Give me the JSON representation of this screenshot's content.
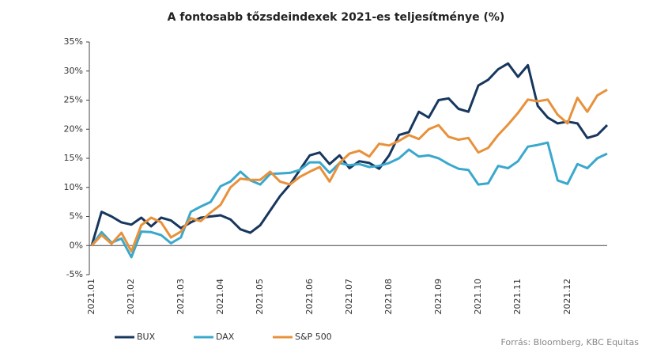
{
  "chart_data": {
    "type": "line",
    "title": "A fontosabb tőzsdeindexek 2021-es teljesítménye (%)",
    "source": "Forrás: Bloomberg, KBC Equitas",
    "categories": [
      "2021.01",
      null,
      null,
      null,
      "2021.02",
      null,
      null,
      null,
      null,
      "2021.03",
      null,
      null,
      null,
      "2021.04",
      null,
      null,
      null,
      "2021.05",
      null,
      null,
      null,
      null,
      "2021.06",
      null,
      null,
      null,
      "2021.07",
      null,
      null,
      null,
      "2021.08",
      null,
      null,
      null,
      null,
      "2021.09",
      null,
      null,
      null,
      "2021.10",
      null,
      null,
      null,
      "2021.11",
      null,
      null,
      null,
      null,
      "2021.12",
      null,
      null,
      null,
      null
    ],
    "ylim": [
      -5,
      35
    ],
    "yticks": [
      {
        "value": -5,
        "label": "-5%"
      },
      {
        "value": 0,
        "label": "0%"
      },
      {
        "value": 5,
        "label": "5%"
      },
      {
        "value": 10,
        "label": "10%"
      },
      {
        "value": 15,
        "label": "15%"
      },
      {
        "value": 20,
        "label": "20%"
      },
      {
        "value": 25,
        "label": "25%"
      },
      {
        "value": 30,
        "label": "30%"
      },
      {
        "value": 35,
        "label": "35%"
      }
    ],
    "legend": "bottom",
    "series": [
      {
        "name": "BUX",
        "color": "#17375e",
        "values": [
          0,
          5.8,
          5,
          4,
          3.6,
          4.8,
          3.3,
          4.8,
          4.3,
          3,
          4,
          4.8,
          5,
          5.2,
          4.5,
          2.8,
          2.2,
          3.5,
          6,
          8.5,
          10.5,
          13,
          15.5,
          16,
          14,
          15.5,
          13.3,
          14.5,
          14.2,
          13.2,
          15.5,
          19,
          19.5,
          23,
          22,
          25,
          25.3,
          23.5,
          23,
          27.5,
          28.5,
          30.3,
          31.3,
          29,
          31,
          24,
          22,
          21,
          21.3,
          21,
          18.5,
          19,
          20.7
        ]
      },
      {
        "name": "DAX",
        "color": "#3aa8cc",
        "values": [
          0,
          2.3,
          0.5,
          1.2,
          -2,
          2.4,
          2.3,
          1.8,
          0.4,
          1.4,
          5.8,
          6.7,
          7.5,
          10.2,
          11,
          12.7,
          11.2,
          10.5,
          12.3,
          12.4,
          12.5,
          13,
          14.3,
          14.3,
          12.5,
          14.2,
          13.8,
          14,
          13.5,
          13.7,
          14.2,
          15,
          16.5,
          15.3,
          15.5,
          15,
          14,
          13.2,
          13,
          10.5,
          10.7,
          13.7,
          13.3,
          14.5,
          17,
          17.3,
          17.7,
          11.2,
          10.6,
          14,
          13.3,
          15,
          15.8
        ]
      },
      {
        "name": "S&P 500",
        "color": "#e8913a",
        "values": [
          0,
          1.8,
          0.3,
          2.2,
          -1,
          3.5,
          4.8,
          4,
          1.4,
          2.4,
          4.7,
          4.2,
          5.7,
          7,
          10,
          11.5,
          11.3,
          11.3,
          12.7,
          11,
          10.5,
          11.8,
          12.7,
          13.5,
          11,
          14.2,
          15.8,
          16.3,
          15.3,
          17.5,
          17.2,
          18,
          19,
          18.3,
          20,
          20.7,
          18.7,
          18.2,
          18.5,
          16,
          16.8,
          19,
          20.8,
          22.8,
          25.1,
          24.8,
          25.1,
          22.5,
          21,
          25.4,
          23,
          25.8,
          26.8
        ]
      }
    ]
  }
}
